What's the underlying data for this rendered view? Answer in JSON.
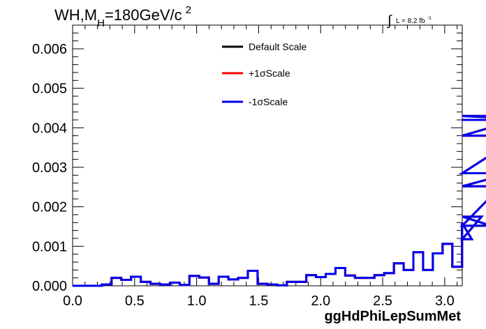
{
  "chart_data": {
    "type": "line",
    "title": {
      "main": "WH,M",
      "sub": "H",
      "rest": "=180GeV/c",
      "sup": "2"
    },
    "lumi": {
      "integral": "∫",
      "text": "L = 8.2 fb",
      "sup": "-1"
    },
    "xlabel": "ggHdPhiLepSumMet",
    "ylabel": "",
    "xlim": [
      0,
      3.1416
    ],
    "ylim": [
      0,
      0.0066
    ],
    "xticks": [
      "0.0",
      "0.5",
      "1.0",
      "1.5",
      "2.0",
      "2.5",
      "3.0"
    ],
    "xtick_values": [
      0,
      0.5,
      1.0,
      1.5,
      2.0,
      2.5,
      3.0
    ],
    "yticks": [
      "0.000",
      "0.001",
      "0.002",
      "0.003",
      "0.004",
      "0.005",
      "0.006"
    ],
    "ytick_values": [
      0,
      0.001,
      0.002,
      0.003,
      0.004,
      0.005,
      0.006
    ],
    "bin_edges_start": 0,
    "bin_width": 0.0785,
    "series": [
      {
        "name": "Default Scale",
        "color": "#000000",
        "values": [
          0,
          0,
          0,
          3e-05,
          0.0002,
          0.00015,
          0.00023,
          0.0001,
          5e-05,
          3e-05,
          8e-05,
          2e-05,
          0.00025,
          0.00021,
          5e-05,
          0.00023,
          0.00016,
          0.0002,
          0.00038,
          5e-05,
          3e-05,
          1e-05,
          0.0001,
          0.0001,
          0.00027,
          0.00022,
          0.0003,
          0.00045,
          0.00026,
          0.0002,
          0.0002,
          0.00027,
          0.00032,
          0.00057,
          0.0004,
          0.00085,
          0.0004,
          0.00082,
          0.00106,
          0.00048,
          0.00158,
          0.00118,
          0.00175,
          0.00152,
          0.00252,
          0.00285,
          0.0038,
          0.0043,
          0.0042
        ]
      },
      {
        "name": "+1σScale",
        "color": "#ff0000",
        "values": [
          0,
          0,
          0,
          3e-05,
          0.0002,
          0.00015,
          0.00023,
          0.0001,
          5e-05,
          3e-05,
          8e-05,
          2e-05,
          0.00025,
          0.00021,
          5e-05,
          0.00023,
          0.00016,
          0.0002,
          0.00038,
          5e-05,
          3e-05,
          1e-05,
          0.0001,
          0.0001,
          0.00027,
          0.00022,
          0.0003,
          0.00045,
          0.00026,
          0.0002,
          0.0002,
          0.00027,
          0.00032,
          0.00057,
          0.0004,
          0.00085,
          0.0004,
          0.00082,
          0.00106,
          0.00048,
          0.00158,
          0.00118,
          0.00175,
          0.00152,
          0.00252,
          0.00285,
          0.0038,
          0.0043,
          0.0042
        ]
      },
      {
        "name": "-1σScale",
        "color": "#0000ee",
        "values": [
          0,
          0,
          0,
          3e-05,
          0.0002,
          0.00015,
          0.00023,
          0.0001,
          5e-05,
          3e-05,
          8e-05,
          2e-05,
          0.00025,
          0.00021,
          5e-05,
          0.00023,
          0.00016,
          0.0002,
          0.00038,
          5e-05,
          3e-05,
          1e-05,
          0.0001,
          0.0001,
          0.00027,
          0.00022,
          0.0003,
          0.00045,
          0.00026,
          0.0002,
          0.0002,
          0.00027,
          0.00032,
          0.00057,
          0.0004,
          0.00085,
          0.0004,
          0.00082,
          0.00106,
          0.00048,
          0.00158,
          0.00118,
          0.00175,
          0.00152,
          0.00252,
          0.00285,
          0.0038,
          0.0043,
          0.0042
        ]
      }
    ],
    "legend_position": "top-center",
    "grid": false
  }
}
